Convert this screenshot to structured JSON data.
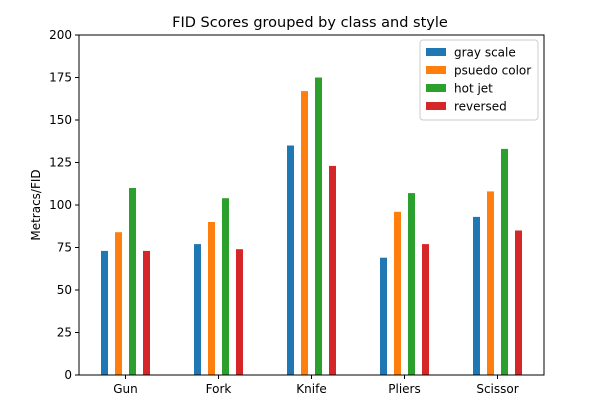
{
  "chart_data": {
    "type": "bar",
    "title": "FID Scores grouped by class and style",
    "xlabel": "",
    "ylabel": "Metracs/FID",
    "categories": [
      "Gun",
      "Fork",
      "Knife",
      "Pliers",
      "Scissor"
    ],
    "ylim": [
      0,
      200
    ],
    "yticks": [
      0,
      25,
      50,
      75,
      100,
      125,
      150,
      175,
      200
    ],
    "grid": false,
    "legend_position": "top-right",
    "series": [
      {
        "name": "gray scale",
        "color": "#1f77b4",
        "values": [
          73,
          77,
          135,
          69,
          93
        ]
      },
      {
        "name": "psuedo color",
        "color": "#ff7f0e",
        "values": [
          84,
          90,
          167,
          96,
          108
        ]
      },
      {
        "name": "hot jet",
        "color": "#2ca02c",
        "values": [
          110,
          104,
          175,
          107,
          133
        ]
      },
      {
        "name": "reversed",
        "color": "#d62728",
        "values": [
          73,
          74,
          123,
          77,
          85
        ]
      }
    ]
  }
}
